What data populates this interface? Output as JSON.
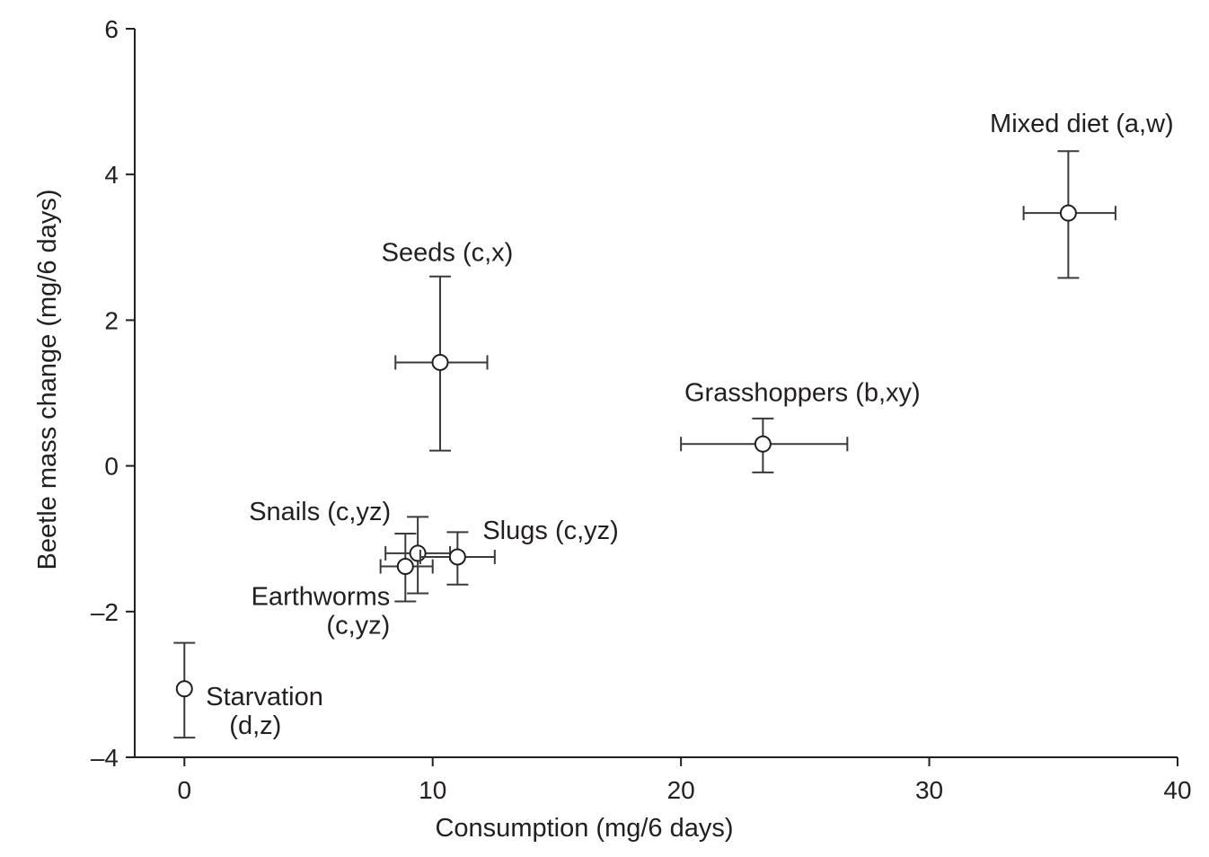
{
  "chart_data": {
    "type": "scatter",
    "title": "",
    "xlabel": "Consumption (mg/6 days)",
    "ylabel": "Beetle mass change (mg/6 days)",
    "xlim": [
      -2,
      40
    ],
    "ylim": [
      -4,
      6
    ],
    "x_ticks": [
      0,
      10,
      20,
      30,
      40
    ],
    "y_ticks": [
      -4,
      -2,
      0,
      2,
      4,
      6
    ],
    "x_tick_labels": [
      "0",
      "10",
      "20",
      "30",
      "40"
    ],
    "y_tick_labels": [
      "–4",
      "–2",
      "0",
      "2",
      "4",
      "6"
    ],
    "grid": false,
    "points": [
      {
        "label_lines": [
          "Mixed diet (a,w)"
        ],
        "x": 35.6,
        "y": 3.47,
        "x_err_low": 33.8,
        "x_err_high": 37.5,
        "y_err_low": 2.58,
        "y_err_high": 4.32
      },
      {
        "label_lines": [
          "Seeds (c,x)"
        ],
        "x": 10.3,
        "y": 1.42,
        "x_err_low": 8.5,
        "x_err_high": 12.2,
        "y_err_low": 0.21,
        "y_err_high": 2.6
      },
      {
        "label_lines": [
          "Grasshoppers (b,xy)"
        ],
        "x": 23.3,
        "y": 0.3,
        "x_err_low": 20.0,
        "x_err_high": 26.7,
        "y_err_low": -0.09,
        "y_err_high": 0.65
      },
      {
        "label_lines": [
          "Snails (c,yz)"
        ],
        "x": 9.4,
        "y": -1.2,
        "x_err_low": 8.1,
        "x_err_high": 10.7,
        "y_err_low": -1.75,
        "y_err_high": -0.7
      },
      {
        "label_lines": [
          "Slugs (c,yz)"
        ],
        "x": 11.0,
        "y": -1.25,
        "x_err_low": 9.5,
        "x_err_high": 12.5,
        "y_err_low": -1.63,
        "y_err_high": -0.91
      },
      {
        "label_lines": [
          "Earthworms",
          "(c,yz)"
        ],
        "x": 8.9,
        "y": -1.38,
        "x_err_low": 7.9,
        "x_err_high": 10.0,
        "y_err_low": -1.86,
        "y_err_high": -0.93
      },
      {
        "label_lines": [
          "Starvation",
          "(d,z)"
        ],
        "x": 0.0,
        "y": -3.06,
        "x_err_low": 0.0,
        "x_err_high": 0.0,
        "y_err_low": -3.73,
        "y_err_high": -2.43
      }
    ]
  }
}
